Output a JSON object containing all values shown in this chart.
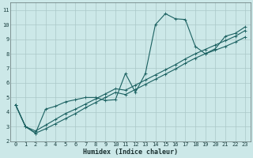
{
  "xlabel": "Humidex (Indice chaleur)",
  "background_color": "#cce8e8",
  "grid_color": "#aac8c8",
  "line_color": "#1a6060",
  "xlim": [
    -0.5,
    23.5
  ],
  "ylim": [
    2,
    11.5
  ],
  "xticks": [
    0,
    1,
    2,
    3,
    4,
    5,
    6,
    7,
    8,
    9,
    10,
    11,
    12,
    13,
    14,
    15,
    16,
    17,
    18,
    19,
    20,
    21,
    22,
    23
  ],
  "yticks": [
    2,
    3,
    4,
    5,
    6,
    7,
    8,
    9,
    10,
    11
  ],
  "series1_x": [
    0,
    1,
    2,
    3,
    4,
    5,
    6,
    7,
    8,
    9,
    10,
    11,
    12,
    13,
    14,
    15,
    16,
    17,
    18,
    19,
    20,
    21,
    22,
    23
  ],
  "series1_y": [
    4.5,
    3.0,
    2.55,
    4.2,
    4.4,
    4.7,
    4.85,
    5.0,
    5.0,
    4.8,
    4.85,
    6.65,
    5.35,
    6.65,
    10.0,
    10.75,
    10.4,
    10.35,
    8.5,
    8.0,
    8.35,
    9.2,
    9.4,
    9.85
  ],
  "series2_x": [
    0,
    1,
    2,
    3,
    4,
    5,
    6,
    7,
    8,
    9,
    10,
    11,
    12,
    13,
    14,
    15,
    16,
    17,
    18,
    19,
    20,
    21,
    22,
    23
  ],
  "series2_y": [
    4.5,
    3.0,
    2.7,
    3.1,
    3.5,
    3.9,
    4.2,
    4.55,
    4.9,
    5.25,
    5.6,
    5.5,
    5.85,
    6.2,
    6.55,
    6.9,
    7.25,
    7.65,
    8.0,
    8.3,
    8.6,
    8.9,
    9.2,
    9.6
  ],
  "series3_x": [
    0,
    1,
    2,
    3,
    4,
    5,
    6,
    7,
    8,
    9,
    10,
    11,
    12,
    13,
    14,
    15,
    16,
    17,
    18,
    19,
    20,
    21,
    22,
    23
  ],
  "series3_y": [
    4.5,
    3.0,
    2.55,
    2.85,
    3.2,
    3.55,
    3.9,
    4.3,
    4.65,
    5.0,
    5.35,
    5.2,
    5.55,
    5.9,
    6.25,
    6.6,
    6.95,
    7.35,
    7.7,
    8.0,
    8.25,
    8.5,
    8.8,
    9.15
  ]
}
